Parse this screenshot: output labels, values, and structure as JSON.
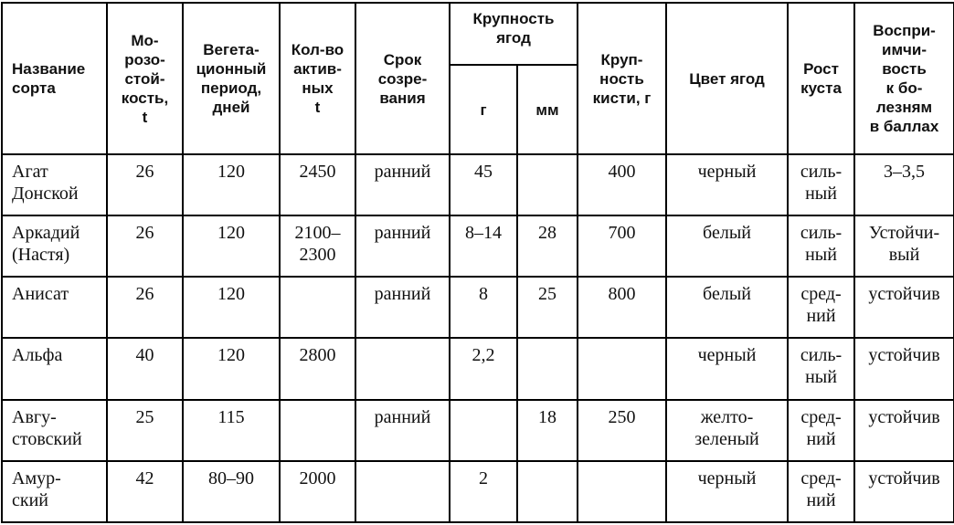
{
  "headers": {
    "name": "Название\nсорта",
    "frost": "Мо-\nрозо-\nстой-\nкость,\nt",
    "vegetation": "Вегета-\nционный\nпериод,\nдней",
    "active_t": "Кол-во\nактив-\nных\nt",
    "ripening": "Срок\nсозре-\nвания",
    "berry_size": "Крупность\nягод",
    "berry_g": "г",
    "berry_mm": "мм",
    "bunch": "Круп-\nность\nкисти, г",
    "color": "Цвет ягод",
    "growth": "Рост\nкуста",
    "disease": "Воспри-\nимчи-\nвость\nк бо-\nлезням\nв баллах"
  },
  "rows": [
    {
      "name": "Агат\nДонской",
      "frost": "26",
      "vegetation": "120",
      "active_t": "2450",
      "ripening": "ранний",
      "berry_g": "45",
      "berry_mm": "",
      "bunch": "400",
      "color": "черный",
      "growth": "силь-\nный",
      "disease": "3–3,5"
    },
    {
      "name": "Аркадий\n(Настя)",
      "frost": "26",
      "vegetation": "120",
      "active_t": "2100–\n2300",
      "ripening": "ранний",
      "berry_g": "8–14",
      "berry_mm": "28",
      "bunch": "700",
      "color": "белый",
      "growth": "силь-\nный",
      "disease": "Устойчи-\nвый"
    },
    {
      "name": "Анисат",
      "frost": "26",
      "vegetation": "120",
      "active_t": "",
      "ripening": "ранний",
      "berry_g": "8",
      "berry_mm": "25",
      "bunch": "800",
      "color": "белый",
      "growth": "сред-\nний",
      "disease": "устойчив"
    },
    {
      "name": "Альфа",
      "frost": "40",
      "vegetation": "120",
      "active_t": "2800",
      "ripening": "",
      "berry_g": "2,2",
      "berry_mm": "",
      "bunch": "",
      "color": "черный",
      "growth": "силь-\nный",
      "disease": "устойчив"
    },
    {
      "name": "Авгу-\nстовский",
      "frost": "25",
      "vegetation": "115",
      "active_t": "",
      "ripening": "ранний",
      "berry_g": "",
      "berry_mm": "18",
      "bunch": "250",
      "color": "желто-\nзеленый",
      "growth": "сред-\nний",
      "disease": "устойчив"
    },
    {
      "name": "Амур-\nский",
      "frost": "42",
      "vegetation": "80–90",
      "active_t": "2000",
      "ripening": "",
      "berry_g": "2",
      "berry_mm": "",
      "bunch": "",
      "color": "черный",
      "growth": "сред-\nний",
      "disease": "устойчив"
    }
  ]
}
